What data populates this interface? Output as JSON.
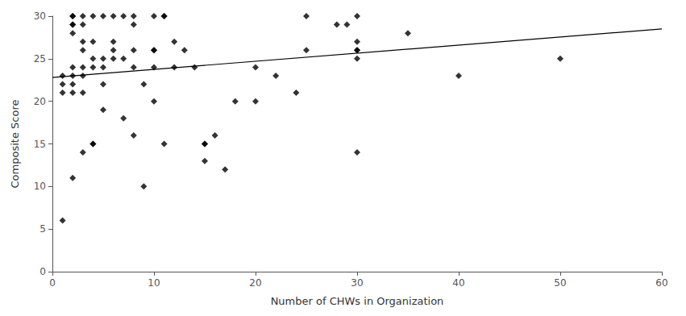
{
  "chart_data": {
    "type": "scatter",
    "xlabel": "Number of CHWs in Organization",
    "ylabel": "Composite Score",
    "xlim": [
      0,
      60
    ],
    "ylim": [
      0,
      30
    ],
    "xticks": [
      0,
      10,
      20,
      30,
      40,
      50,
      60
    ],
    "yticks": [
      0,
      5,
      10,
      15,
      20,
      25,
      30
    ],
    "grid": false,
    "series": [
      {
        "type": "scatter",
        "marker": "diamond",
        "color": "black",
        "x": [
          1,
          1,
          1,
          1,
          2,
          2,
          2,
          2,
          2,
          2,
          2,
          2,
          2,
          2,
          3,
          3,
          3,
          3,
          3,
          3,
          3,
          3,
          4,
          4,
          4,
          4,
          4,
          4,
          5,
          5,
          5,
          5,
          5,
          6,
          6,
          6,
          6,
          7,
          7,
          7,
          8,
          8,
          8,
          8,
          8,
          9,
          9,
          10,
          10,
          10,
          10,
          10,
          11,
          11,
          11,
          12,
          12,
          13,
          14,
          15,
          15,
          15,
          16,
          17,
          18,
          20,
          20,
          22,
          24,
          25,
          25,
          28,
          29,
          30,
          30,
          30,
          30,
          30,
          30,
          35,
          40,
          50
        ],
        "values": [
          23,
          22,
          21,
          6,
          30,
          30,
          29,
          29,
          28,
          24,
          23,
          22,
          21,
          11,
          30,
          29,
          27,
          26,
          24,
          23,
          21,
          14,
          30,
          27,
          25,
          24,
          15,
          15,
          30,
          25,
          24,
          22,
          19,
          30,
          27,
          26,
          25,
          30,
          25,
          18,
          30,
          29,
          26,
          24,
          16,
          22,
          10,
          30,
          26,
          26,
          24,
          20,
          30,
          30,
          15,
          27,
          24,
          26,
          24,
          15,
          15,
          13,
          16,
          12,
          20,
          20,
          24,
          23,
          21,
          30,
          26,
          29,
          29,
          30,
          27,
          26,
          26,
          25,
          14,
          28,
          23,
          25
        ]
      },
      {
        "type": "line",
        "color": "black",
        "x": [
          0,
          60
        ],
        "values": [
          22.8,
          28.5
        ]
      }
    ]
  }
}
